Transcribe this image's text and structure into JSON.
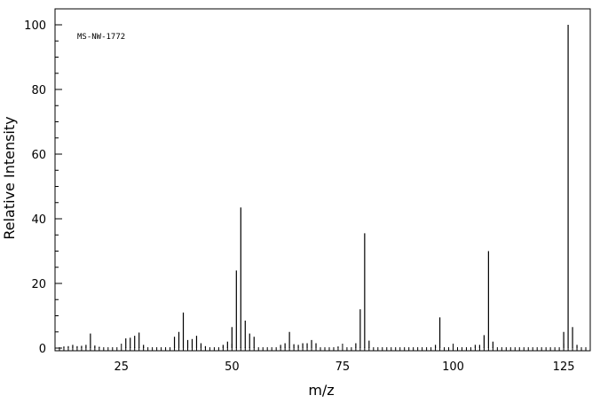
{
  "chart_data": {
    "type": "bar",
    "title": "",
    "annotation": "MS-NW-1772",
    "xlabel": "m/z",
    "ylabel": "Relative Intensity",
    "xlim": [
      10,
      131
    ],
    "ylim": [
      0,
      105
    ],
    "x_ticks": [
      25,
      50,
      75,
      100,
      125
    ],
    "y_ticks": [
      0,
      20,
      40,
      60,
      80,
      100
    ],
    "x_minor_step": 1,
    "y_minor_step": 5,
    "grid": false,
    "series": [
      {
        "x": [
          12,
          13,
          14,
          15,
          16,
          17,
          18,
          19,
          20,
          26,
          27,
          28,
          29,
          30,
          37,
          38,
          39,
          40,
          41,
          42,
          43,
          44,
          48,
          49,
          50,
          51,
          52,
          53,
          54,
          55,
          61,
          62,
          63,
          64,
          65,
          66,
          67,
          68,
          69,
          74,
          78,
          79,
          80,
          81,
          96,
          97,
          105,
          106,
          107,
          108,
          109,
          125,
          126,
          127,
          128
        ],
        "values": [
          0.5,
          0.6,
          1.0,
          0.6,
          0.7,
          1.0,
          4.5,
          0.8,
          0.4,
          3.0,
          3.2,
          3.8,
          4.8,
          1.0,
          3.5,
          5.0,
          11.0,
          2.5,
          2.8,
          3.8,
          1.5,
          0.6,
          1.0,
          2.0,
          6.5,
          24.0,
          43.5,
          8.5,
          4.5,
          3.5,
          1.0,
          1.5,
          5.0,
          1.2,
          1.0,
          1.5,
          1.5,
          2.5,
          1.5,
          0.5,
          1.5,
          12.0,
          35.5,
          2.3,
          1.0,
          9.5,
          1.0,
          1.0,
          4.0,
          30.0,
          2.0,
          5.0,
          100.0,
          6.5,
          1.0
        ]
      }
    ]
  }
}
